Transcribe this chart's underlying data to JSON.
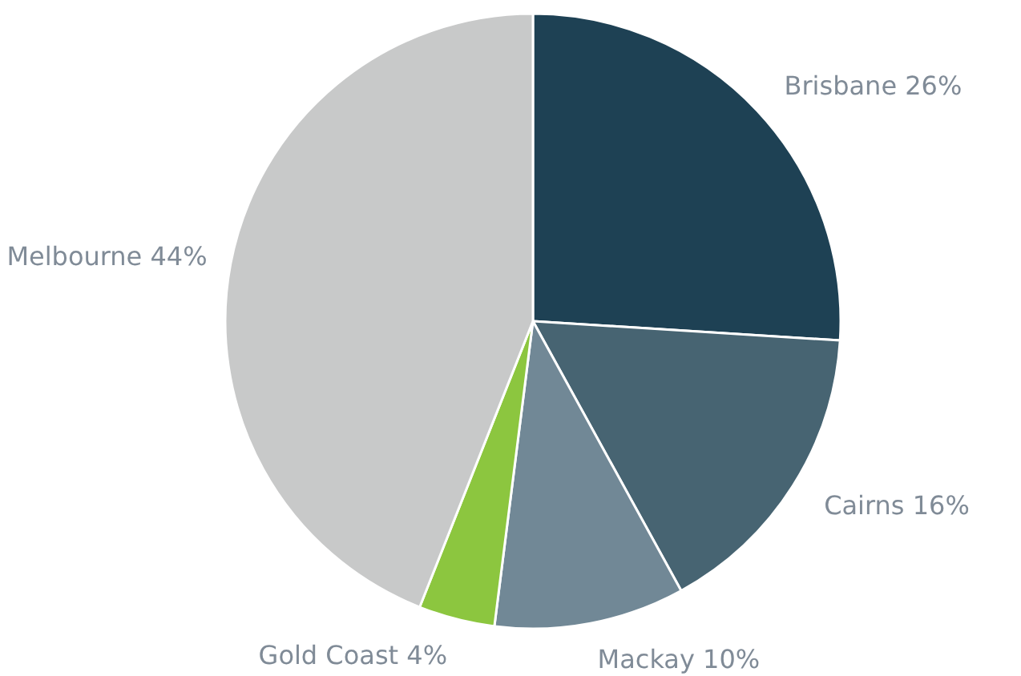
{
  "chart_data": {
    "type": "pie",
    "categories": [
      "Brisbane",
      "Cairns",
      "Mackay",
      "Gold Coast",
      "Melbourne"
    ],
    "values": [
      26,
      16,
      10,
      4,
      44
    ],
    "value_labels": [
      "26%",
      "16%",
      "10%",
      "4%",
      "44%"
    ],
    "colors": [
      "#1e4154",
      "#476472",
      "#718896",
      "#8cc63f",
      "#c8c9c9"
    ]
  }
}
